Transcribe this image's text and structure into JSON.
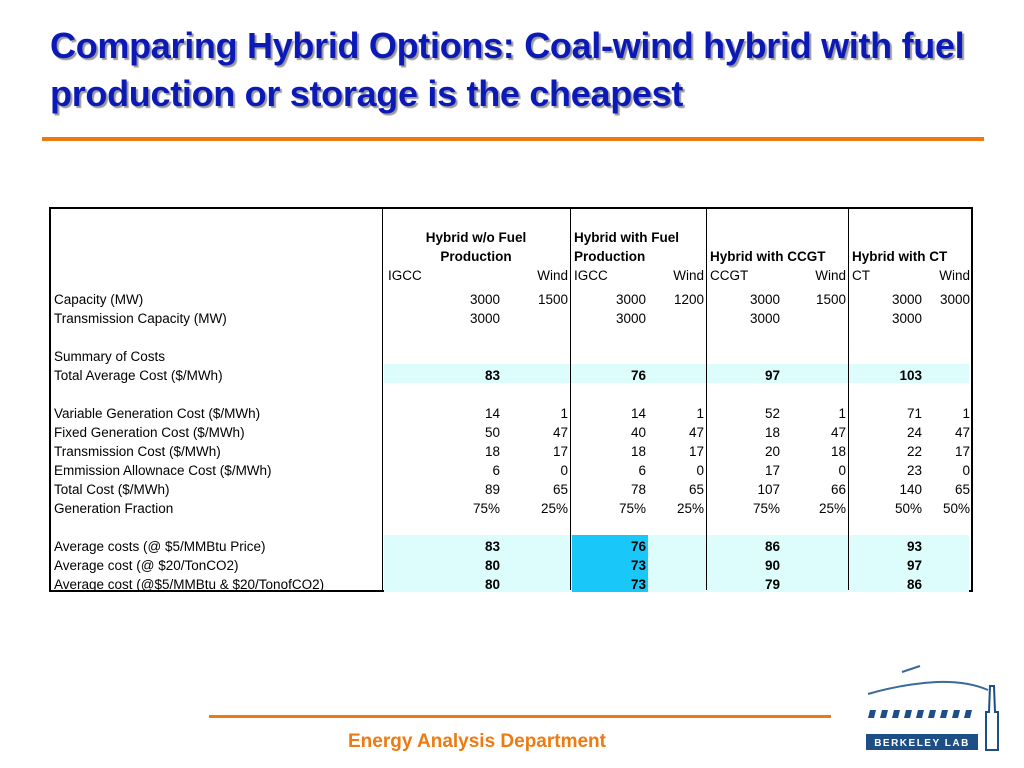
{
  "title": "Comparing Hybrid Options: Coal-wind hybrid with fuel production or storage is the cheapest",
  "footer": "Energy Analysis Department",
  "logo_text": "BERKELEY LAB",
  "colors": {
    "title": "#0b1ab6",
    "accent": "#f07810",
    "band": "#ddfcfc",
    "highlight": "#19c8f8"
  },
  "table": {
    "groups": [
      {
        "line1": "Hybrid w/o Fuel",
        "line2": "Production"
      },
      {
        "line1": "Hybrid with Fuel",
        "line2": "Production"
      },
      {
        "line1": "",
        "line2": "Hybrid with CCGT"
      },
      {
        "line1": "",
        "line2": "Hybrid with CT"
      }
    ],
    "subheaders": [
      "IGCC",
      "Wind",
      "IGCC",
      "Wind",
      "CCGT",
      "Wind",
      "CT",
      "Wind"
    ],
    "rows": [
      {
        "label": "Capacity (MW)",
        "values": [
          "3000",
          "1500",
          "3000",
          "1200",
          "3000",
          "1500",
          "3000",
          "3000"
        ]
      },
      {
        "label": "Transmission Capacity (MW)",
        "values": [
          "3000",
          "",
          "3000",
          "",
          "3000",
          "",
          "3000",
          ""
        ]
      },
      {
        "label": "",
        "values": [
          "",
          "",
          "",
          "",
          "",
          "",
          "",
          ""
        ]
      },
      {
        "label": "Summary of Costs",
        "values": [
          "",
          "",
          "",
          "",
          "",
          "",
          "",
          ""
        ]
      },
      {
        "label": "Total Average Cost ($/MWh)",
        "values": [
          "83",
          "",
          "76",
          "",
          "97",
          "",
          "103",
          ""
        ]
      },
      {
        "label": "",
        "values": [
          "",
          "",
          "",
          "",
          "",
          "",
          "",
          ""
        ]
      },
      {
        "label": "Variable Generation Cost ($/MWh)",
        "values": [
          "14",
          "1",
          "14",
          "1",
          "52",
          "1",
          "71",
          "1"
        ]
      },
      {
        "label": "Fixed Generation Cost ($/MWh)",
        "values": [
          "50",
          "47",
          "40",
          "47",
          "18",
          "47",
          "24",
          "47"
        ]
      },
      {
        "label": "Transmission Cost ($/MWh)",
        "values": [
          "18",
          "17",
          "18",
          "17",
          "20",
          "18",
          "22",
          "17"
        ]
      },
      {
        "label": "Emmission Allownace Cost ($/MWh)",
        "values": [
          "6",
          "0",
          "6",
          "0",
          "17",
          "0",
          "23",
          "0"
        ]
      },
      {
        "label": "Total Cost ($/MWh)",
        "values": [
          "89",
          "65",
          "78",
          "65",
          "107",
          "66",
          "140",
          "65"
        ]
      },
      {
        "label": "Generation Fraction",
        "values": [
          "75%",
          "25%",
          "75%",
          "25%",
          "75%",
          "25%",
          "50%",
          "50%"
        ]
      },
      {
        "label": "",
        "values": [
          "",
          "",
          "",
          "",
          "",
          "",
          "",
          ""
        ]
      },
      {
        "label": "Average costs (@ $5/MMBtu Price)",
        "values": [
          "83",
          "",
          "76",
          "",
          "86",
          "",
          "93",
          ""
        ]
      },
      {
        "label": "Average cost (@ $20/TonCO2)",
        "values": [
          "80",
          "",
          "73",
          "",
          "90",
          "",
          "97",
          ""
        ]
      },
      {
        "label": "Average cost (@$5/MMBtu & $20/TonofCO2)",
        "values": [
          "80",
          "",
          "73",
          "",
          "79",
          "",
          "86",
          ""
        ]
      }
    ]
  }
}
